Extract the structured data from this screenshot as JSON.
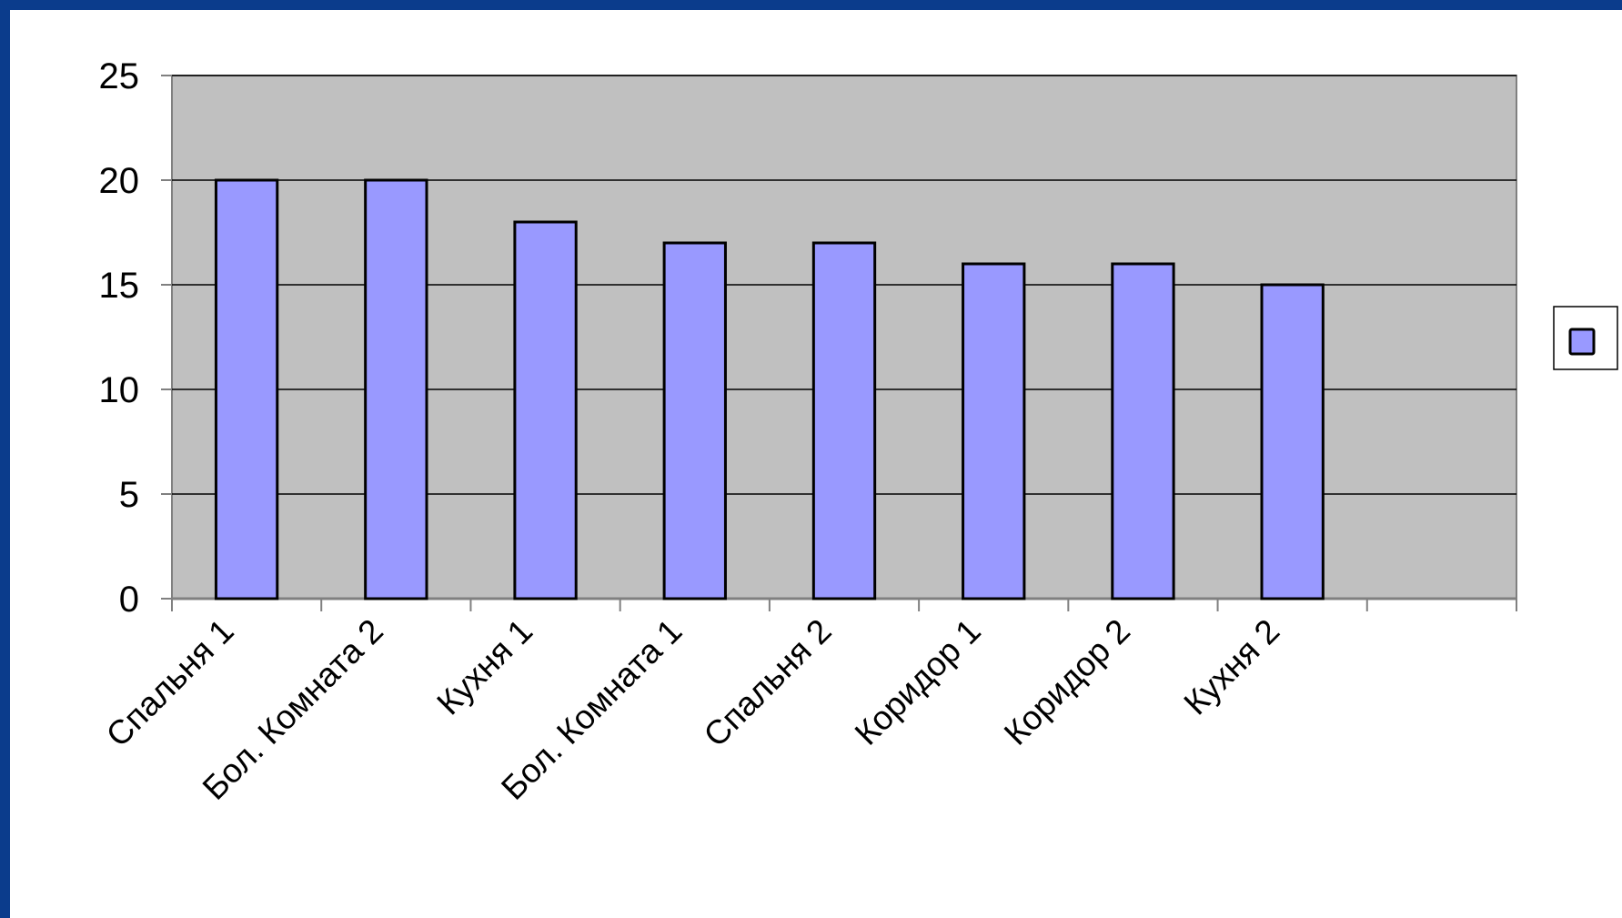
{
  "chart_data": {
    "type": "bar",
    "categories": [
      "Спальня 1",
      "Бол. Комната 2",
      "Кухня 1",
      "Бол. Комната 1",
      "Спальня 2",
      "Коридор 1",
      "Коридор 2",
      "Кухня 2",
      null
    ],
    "values": [
      20,
      20,
      18,
      17,
      17,
      16,
      16,
      15,
      null
    ],
    "color": "#9999ff",
    "ylim": [
      0,
      25
    ],
    "yticks": [
      0,
      5,
      10,
      15,
      20,
      25
    ],
    "grid": true,
    "legend": "right"
  }
}
